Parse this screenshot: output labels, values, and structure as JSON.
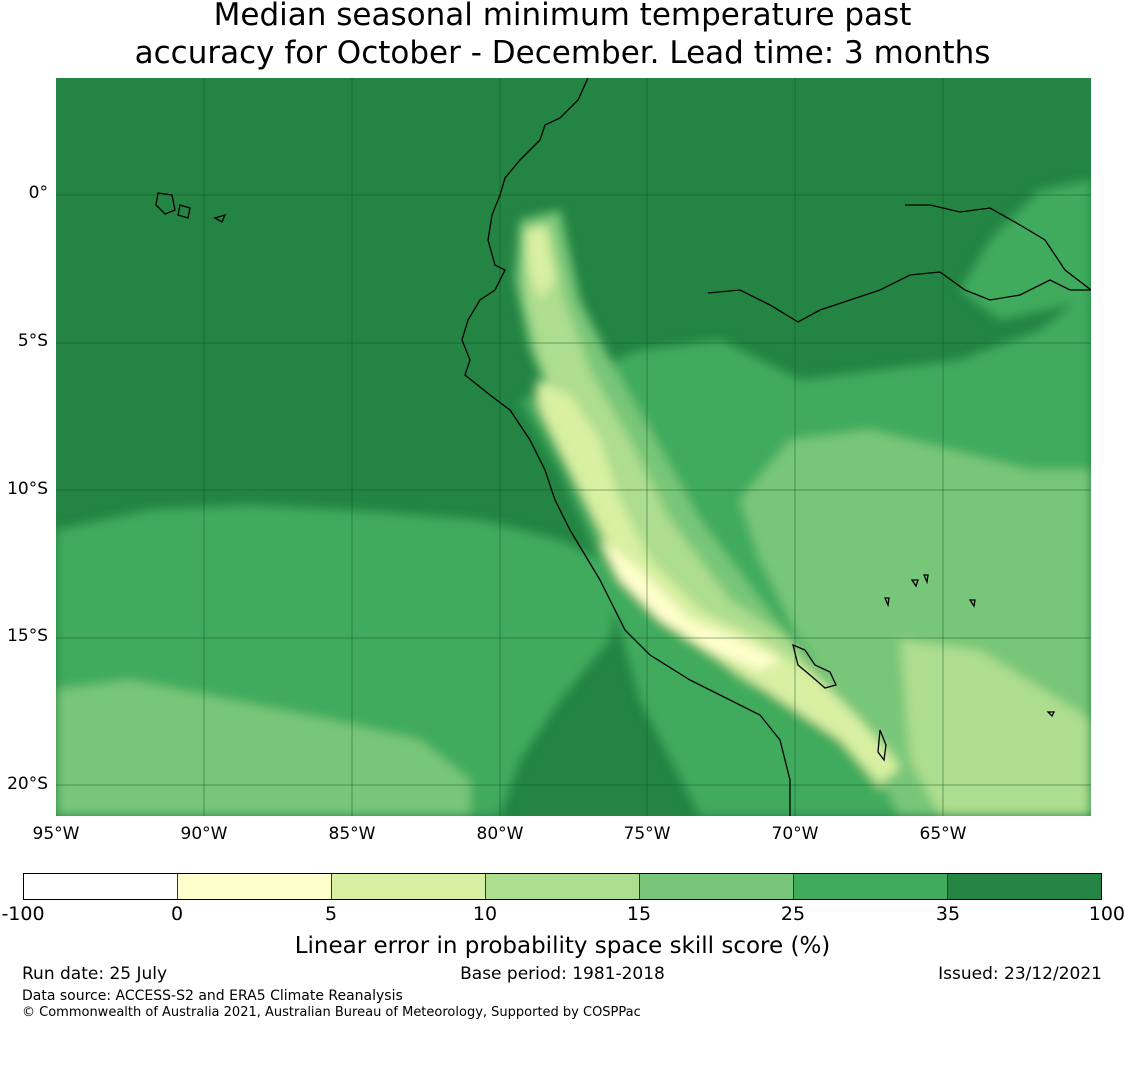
{
  "title": {
    "line1": "Median seasonal minimum temperature past",
    "line2": "accuracy for October - December. Lead time: 3 months"
  },
  "map": {
    "y_ticks": [
      "0°",
      "5°S",
      "10°S",
      "15°S",
      "20°S"
    ],
    "x_ticks": [
      "95°W",
      "90°W",
      "85°W",
      "80°W",
      "75°W",
      "70°W",
      "65°W"
    ],
    "lon_range": [
      -95,
      -60
    ],
    "lat_range": [
      -21,
      4
    ]
  },
  "colorbar": {
    "label": "Linear error in probability space skill score (%)",
    "ticks": [
      "-100",
      "0",
      "5",
      "10",
      "15",
      "25",
      "35",
      "100"
    ],
    "colors": [
      "#ffffff",
      "#ffffcc",
      "#d9f0a3",
      "#addd8e",
      "#78c679",
      "#41ab5d",
      "#238443"
    ]
  },
  "footer": {
    "run_date": "Run date: 25 July",
    "base_period": "Base period: 1981-2018",
    "issued": "Issued: 23/12/2021",
    "data_source": "Data source: ACCESS-S2 and ERA5 Climate Reanalysis",
    "copyright": "© Commonwealth of Australia 2021, Australian Bureau of Meteorology, Supported by COSPPac"
  }
}
